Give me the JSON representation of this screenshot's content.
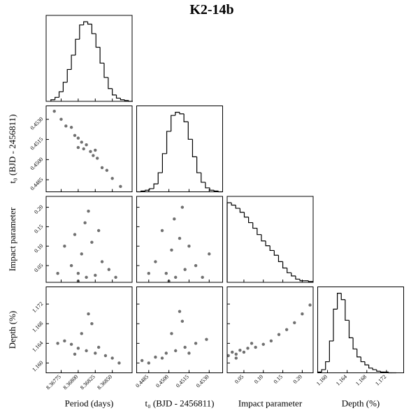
{
  "chart_data": {
    "type": "corner",
    "title": "K2-14b",
    "parameters": [
      {
        "label": "Period (days)",
        "lim": [
          8.36753,
          8.36879
        ],
        "ticks": [
          8.36775,
          {
            "value": 8.368,
            "label": "8.36800"
          },
          8.36825,
          {
            "value": 8.3685,
            "label": "8.36850"
          }
        ]
      },
      {
        "label": "t₀ (BJD - 2456811)",
        "lim": [
          0.4476,
          0.454
        ],
        "ticks": [
          0.4485,
          {
            "value": 0.45,
            "label": "0.4500"
          },
          0.4515,
          {
            "value": 0.453,
            "label": "0.4530"
          }
        ]
      },
      {
        "label": "Impact parameter",
        "lim": [
          0.007,
          0.228
        ],
        "ticks": [
          0.05,
          {
            "value": 0.1,
            "label": "0.10"
          },
          0.15,
          {
            "value": 0.2,
            "label": "0.20"
          }
        ]
      },
      {
        "label": "Depth (%)",
        "lim": [
          1.158,
          1.1755
        ],
        "ticks": [
          {
            "value": 1.16,
            "label": "1.160"
          },
          1.164,
          1.168,
          1.172
        ]
      }
    ],
    "histograms": [
      {
        "bins": [
          8.3676,
          8.36766,
          8.36772,
          8.36778,
          8.36784,
          8.3679,
          8.36796,
          8.36802,
          8.36808,
          8.36814,
          8.3682,
          8.36826,
          8.36832,
          8.36838,
          8.36844,
          8.3685,
          8.36856,
          8.36862,
          8.36868,
          8.36874,
          8.3688
        ],
        "counts": [
          2,
          5,
          12,
          24,
          40,
          58,
          78,
          96,
          100,
          97,
          85,
          68,
          48,
          30,
          16,
          8,
          4,
          2,
          1,
          0
        ]
      },
      {
        "bins": [
          0.4476,
          0.44792,
          0.44824,
          0.44856,
          0.44888,
          0.4492,
          0.44952,
          0.44984,
          0.45016,
          0.45048,
          0.4508,
          0.45112,
          0.45144,
          0.45176,
          0.45208,
          0.4524,
          0.45272,
          0.45304,
          0.45336,
          0.45368,
          0.454
        ],
        "counts": [
          0,
          1,
          2,
          4,
          10,
          24,
          48,
          76,
          96,
          100,
          98,
          88,
          66,
          44,
          24,
          12,
          5,
          2,
          1,
          0
        ]
      },
      {
        "bins": [
          0.007,
          0.018,
          0.029,
          0.04,
          0.051,
          0.062,
          0.073,
          0.084,
          0.095,
          0.106,
          0.117,
          0.128,
          0.139,
          0.15,
          0.161,
          0.172,
          0.183,
          0.194,
          0.205,
          0.216,
          0.227
        ],
        "counts": [
          100,
          97,
          93,
          88,
          82,
          75,
          68,
          60,
          52,
          46,
          40,
          34,
          26,
          18,
          12,
          8,
          4,
          2,
          2,
          1
        ]
      },
      {
        "bins": [
          1.158,
          1.1588,
          1.1596,
          1.1604,
          1.1612,
          1.162,
          1.1628,
          1.1636,
          1.1644,
          1.1652,
          1.166,
          1.1668,
          1.1676,
          1.1684,
          1.1692,
          1.17,
          1.1708,
          1.1716,
          1.1724,
          1.1732,
          1.174
        ],
        "counts": [
          1,
          4,
          14,
          40,
          80,
          100,
          92,
          66,
          44,
          30,
          20,
          14,
          10,
          6,
          4,
          2,
          1,
          1,
          0,
          0
        ]
      }
    ],
    "panels": [
      {
        "x": [
          8.36765,
          8.36775,
          8.36782,
          8.3679,
          8.36795,
          8.368,
          8.36805,
          8.36808,
          8.36812,
          8.36818,
          8.36822,
          8.36828,
          8.36835,
          8.36842,
          8.3685,
          8.36862,
          8.368,
          8.36825
        ],
        "y": [
          0.4536,
          0.453,
          0.4525,
          0.4524,
          0.4518,
          0.4516,
          0.4513,
          0.4508,
          0.4511,
          0.4506,
          0.4503,
          0.4501,
          0.4494,
          0.4492,
          0.4486,
          0.448,
          0.4509,
          0.4507
        ]
      },
      {
        "x": [
          8.36812,
          8.368,
          8.36825,
          8.3679,
          8.36835,
          8.36805,
          8.3682,
          8.36795,
          8.3681,
          8.3678,
          8.36845,
          8.3677,
          8.36855,
          8.36815,
          8.3683,
          8.368
        ],
        "y": [
          0.02,
          0.03,
          0.025,
          0.05,
          0.06,
          0.08,
          0.11,
          0.13,
          0.16,
          0.1,
          0.04,
          0.03,
          0.02,
          0.19,
          0.14,
          0.01
        ]
      },
      {
        "x": [
          0.4505,
          0.4498,
          0.4512,
          0.449,
          0.452,
          0.4502,
          0.4508,
          0.4495,
          0.4515,
          0.4485,
          0.4525,
          0.4504,
          0.45,
          0.451,
          0.453
        ],
        "y": [
          0.02,
          0.03,
          0.04,
          0.06,
          0.05,
          0.09,
          0.12,
          0.14,
          0.1,
          0.03,
          0.02,
          0.17,
          0.01,
          0.2,
          0.08
        ]
      },
      {
        "x": [
          8.36812,
          8.368,
          8.36825,
          8.3679,
          8.3684,
          8.3678,
          8.3685,
          8.36805,
          8.3682,
          8.3677,
          8.3686,
          8.36815,
          8.36795,
          8.3683
        ],
        "y": [
          1.1625,
          1.163,
          1.162,
          1.1638,
          1.1615,
          1.1645,
          1.161,
          1.166,
          1.168,
          1.164,
          1.16,
          1.17,
          1.1618,
          1.1632
        ]
      },
      {
        "x": [
          0.4505,
          0.4498,
          0.4512,
          0.449,
          0.452,
          0.448,
          0.4528,
          0.4502,
          0.451,
          0.4495,
          0.4515,
          0.4508,
          0.4485
        ],
        "y": [
          1.1625,
          1.162,
          1.1632,
          1.1612,
          1.164,
          1.1605,
          1.1648,
          1.166,
          1.1685,
          1.161,
          1.162,
          1.1705,
          1.16
        ]
      },
      {
        "x": [
          0.01,
          0.02,
          0.03,
          0.04,
          0.05,
          0.06,
          0.08,
          0.1,
          0.12,
          0.14,
          0.16,
          0.18,
          0.2,
          0.22,
          0.03,
          0.07
        ],
        "y": [
          1.1615,
          1.1622,
          1.1618,
          1.1626,
          1.1622,
          1.163,
          1.1632,
          1.1638,
          1.1645,
          1.1658,
          1.1668,
          1.1682,
          1.17,
          1.1718,
          1.161,
          1.164
        ]
      }
    ]
  }
}
